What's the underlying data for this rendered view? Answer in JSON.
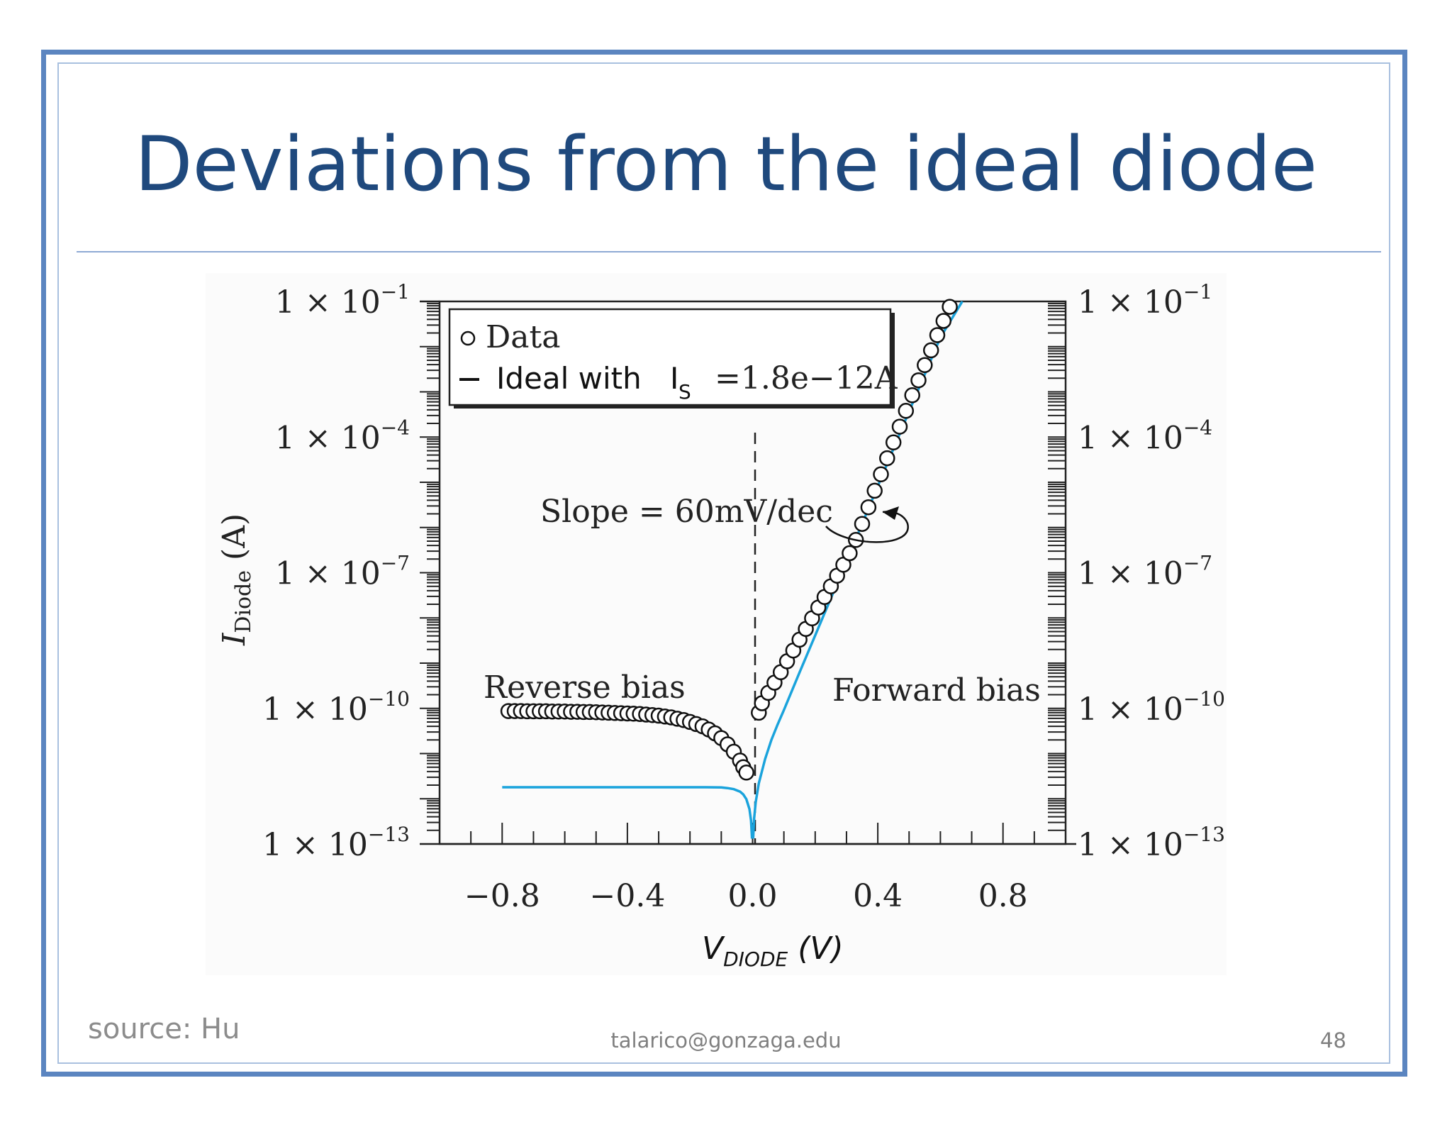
{
  "slide": {
    "title": "Deviations from the ideal diode",
    "source": "source: Hu",
    "email": "talarico@gonzaga.edu",
    "page_number": "48"
  },
  "colors": {
    "title": "#1f497d",
    "frame": "#5b85c0",
    "ideal_curve": "#1aa3dc",
    "data_marker": "#111111"
  },
  "chart_data": {
    "type": "scatter",
    "y_scale": "log",
    "xlim": [
      -1.0,
      1.0
    ],
    "ylim": [
      1e-13,
      0.1
    ],
    "x_ticks": [
      -0.8,
      -0.4,
      0.0,
      0.4,
      0.8
    ],
    "x_tick_labels": [
      "−0.8",
      "−0.4",
      "0.0",
      "0.4",
      "0.8"
    ],
    "y_ticks": [
      1e-13,
      1e-10,
      1e-07,
      0.0001,
      0.1
    ],
    "y_tick_labels": [
      {
        "base": "1 × 10",
        "exp": "−13"
      },
      {
        "base": "1 × 10",
        "exp": "−10"
      },
      {
        "base": "1 × 10",
        "exp": "−7"
      },
      {
        "base": "1 × 10",
        "exp": "−4"
      },
      {
        "base": "1 × 10",
        "exp": "−1"
      }
    ],
    "xlabel": {
      "main": "V",
      "sub": "DIODE",
      "unit": " (V)"
    },
    "ylabel": {
      "main": "I",
      "sub": "Diode",
      "unit": " (A)"
    },
    "legend": {
      "position": "top-left",
      "data_label": "Data",
      "ideal_label": "Ideal with",
      "ideal_is": "I",
      "ideal_is_sub": "S",
      "ideal_value": "=1.8e−12A"
    },
    "annotations": {
      "slope": "Slope = 60mV/dec",
      "reverse": "Reverse bias",
      "forward": "Forward bias"
    },
    "ideal_is_value": 1.8e-12,
    "series": [
      {
        "name": "Data",
        "marker": "open-circle",
        "x": [
          -0.78,
          -0.76,
          -0.74,
          -0.72,
          -0.7,
          -0.68,
          -0.66,
          -0.64,
          -0.62,
          -0.6,
          -0.58,
          -0.56,
          -0.54,
          -0.52,
          -0.5,
          -0.48,
          -0.46,
          -0.44,
          -0.42,
          -0.4,
          -0.38,
          -0.36,
          -0.34,
          -0.32,
          -0.3,
          -0.28,
          -0.26,
          -0.24,
          -0.22,
          -0.2,
          -0.18,
          -0.16,
          -0.14,
          -0.12,
          -0.1,
          -0.08,
          -0.06,
          -0.04,
          -0.03,
          -0.02,
          0.02,
          0.03,
          0.05,
          0.07,
          0.09,
          0.11,
          0.13,
          0.15,
          0.17,
          0.19,
          0.21,
          0.23,
          0.25,
          0.27,
          0.29,
          0.31,
          0.33,
          0.35,
          0.37,
          0.39,
          0.41,
          0.43,
          0.45,
          0.47,
          0.49,
          0.51,
          0.53,
          0.55,
          0.57,
          0.59,
          0.61,
          0.63
        ],
        "y": [
          8.7e-11,
          8.7e-11,
          8.7e-11,
          8.6e-11,
          8.6e-11,
          8.6e-11,
          8.6e-11,
          8.5e-11,
          8.5e-11,
          8.5e-11,
          8.4e-11,
          8.4e-11,
          8.3e-11,
          8.3e-11,
          8.2e-11,
          8.1e-11,
          8e-11,
          7.9e-11,
          7.8e-11,
          7.7e-11,
          7.6e-11,
          7.5e-11,
          7.3e-11,
          7.1e-11,
          6.9e-11,
          6.6e-11,
          6.3e-11,
          5.9e-11,
          5.5e-11,
          5e-11,
          4.5e-11,
          4e-11,
          3.4e-11,
          2.8e-11,
          2.2e-11,
          1.6e-11,
          1.1e-11,
          7e-12,
          5e-12,
          3.8e-12,
          8e-11,
          1.3e-10,
          2.2e-10,
          3.7e-10,
          6.3e-10,
          1.1e-09,
          1.9e-09,
          3.3e-09,
          5.7e-09,
          9.8e-09,
          1.7e-08,
          2.9e-08,
          5e-08,
          8.6e-08,
          1.5e-07,
          2.7e-07,
          5.3e-07,
          1.2e-06,
          2.8e-06,
          6.5e-06,
          1.5e-05,
          3.4e-05,
          7.6e-05,
          0.00017,
          0.00038,
          0.00084,
          0.0018,
          0.0039,
          0.0083,
          0.018,
          0.037,
          0.076
        ]
      },
      {
        "name": "Ideal with I_S =1.8e−12A",
        "line": true,
        "x": [
          -0.8,
          -0.6,
          -0.4,
          -0.3,
          -0.2,
          -0.15,
          -0.1,
          -0.08,
          -0.06,
          -0.04,
          -0.03,
          -0.02,
          -0.01,
          -0.005,
          -0.002,
          0.002,
          0.005,
          0.01,
          0.02,
          0.04,
          0.06,
          0.08,
          0.1,
          0.15,
          0.2,
          0.3,
          0.4,
          0.5,
          0.6,
          0.67
        ],
        "y": [
          1.8e-12,
          1.8e-12,
          1.8e-12,
          1.8e-12,
          1.8e-12,
          1.8e-12,
          1.78e-12,
          1.72e-12,
          1.63e-12,
          1.44e-12,
          1.25e-12,
          9.8e-13,
          5.9e-13,
          3.3e-13,
          1.4e-13,
          1.4e-13,
          3.7e-13,
          8.4e-13,
          2.2e-12,
          7.6e-12,
          2e-11,
          4.4e-11,
          9.2e-11,
          6.2e-10,
          4.1e-09,
          1.8e-07,
          8.2e-06,
          0.00037,
          0.016,
          0.1
        ]
      }
    ]
  }
}
